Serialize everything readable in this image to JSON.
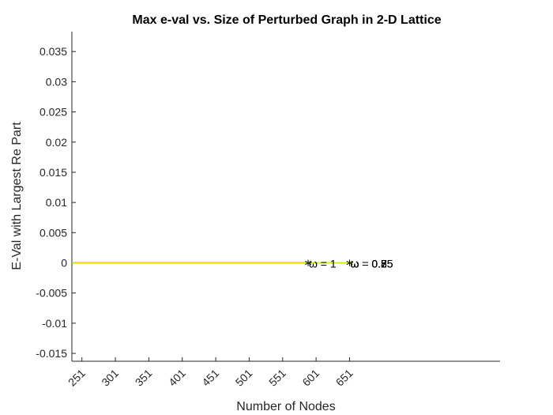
{
  "chart_data": {
    "type": "line",
    "title": "Max e-val vs. Size of Perturbed Graph in 2-D Lattice",
    "xlabel": "Number of Nodes",
    "ylabel": "E-Val with Largest Re Part",
    "xlim": [
      236,
      876
    ],
    "ylim": [
      -0.0163,
      0.0383
    ],
    "x_ticks": [
      "251",
      "301",
      "351",
      "401",
      "451",
      "501",
      "551",
      "601",
      "651"
    ],
    "y_ticks": [
      "-0.015",
      "-0.01",
      "-0.005",
      "0",
      "0.005",
      "0.01",
      "0.015",
      "0.02",
      "0.025",
      "0.03",
      "0.035"
    ],
    "series": [
      {
        "color": "#000000",
        "x": [
          236,
          589
        ],
        "y": [
          0,
          0
        ]
      },
      {
        "color": "#2e7d32",
        "x": [
          236,
          651
        ],
        "y": [
          0,
          0
        ]
      },
      {
        "color": "#66ff33",
        "x": [
          236,
          651
        ],
        "y": [
          0,
          0
        ]
      },
      {
        "color": "#e6e600",
        "x": [
          236,
          651
        ],
        "y": [
          0,
          0
        ]
      }
    ],
    "annotations": [
      {
        "text": "ω = 1",
        "x": 589,
        "y": 0
      },
      {
        "text": "ω = 0.85",
        "x": 651,
        "y": 0
      },
      {
        "text": "ω = 0.75",
        "x": 651,
        "y": 0
      },
      {
        "text": "ω = 0.5",
        "x": 651,
        "y": 0
      },
      {
        "text": "ω = 0.25",
        "x": 651,
        "y": 0
      }
    ],
    "markers": [
      {
        "symbol": "*",
        "x": 589,
        "y": 0
      },
      {
        "symbol": "*",
        "x": 651,
        "y": 0
      }
    ],
    "grid": false,
    "legend": "none"
  }
}
